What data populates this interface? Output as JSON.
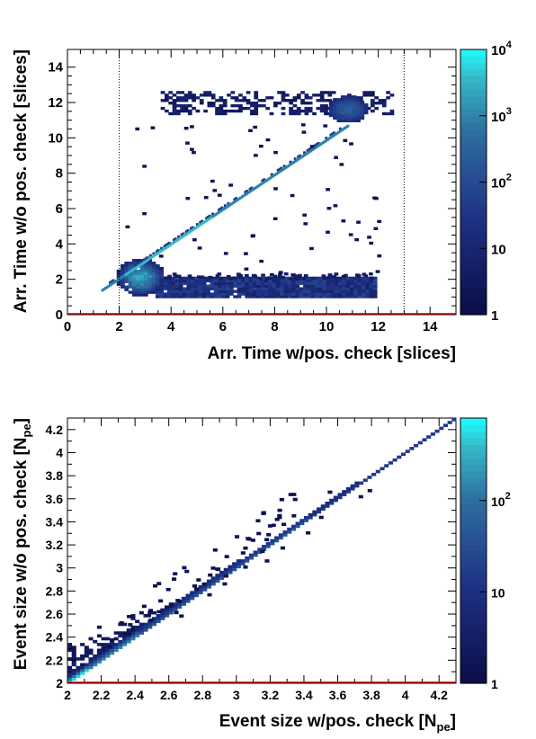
{
  "palette": {
    "low": "#0b0f4a",
    "mid": "#1f2f83",
    "midhigh": "#2d6fa1",
    "high": "#35b8c6",
    "top": "#22f5f7",
    "frame": "#000000",
    "cutline": "#000000",
    "redline": "#c00000"
  },
  "chart_data": [
    {
      "type": "heatmap",
      "xlabel": "Arr. Time w/pos. check [slices]",
      "ylabel": "Arr. Time w/o pos. check [slices]",
      "xlim": [
        0,
        15
      ],
      "ylim": [
        0,
        15
      ],
      "xticks": [
        "0",
        "2",
        "4",
        "6",
        "8",
        "10",
        "12",
        "14"
      ],
      "yticks": [
        "0",
        "2",
        "4",
        "6",
        "8",
        "10",
        "12",
        "14"
      ],
      "color_scale": "log",
      "zlim": [
        1,
        10000
      ],
      "color_ticks": [
        {
          "value": 1,
          "label": "1"
        },
        {
          "value": 10,
          "label": "10"
        },
        {
          "value": 100,
          "label": "10",
          "exp": "2"
        },
        {
          "value": 1000,
          "label": "10",
          "exp": "3"
        },
        {
          "value": 10000,
          "label": "10",
          "exp": "4"
        }
      ],
      "cut_lines_x": [
        2,
        13
      ],
      "regions": [
        {
          "kind": "band",
          "x": [
            2,
            11.9
          ],
          "y": [
            0.9,
            2.1
          ],
          "intensity": 0.35
        },
        {
          "kind": "band",
          "x": [
            3.5,
            12.5
          ],
          "y": [
            11.2,
            12.6
          ],
          "intensity": 0.12
        },
        {
          "kind": "blob",
          "center": [
            10.7,
            11.6
          ],
          "radius": [
            0.7,
            0.7
          ],
          "intensity": 0.55
        },
        {
          "kind": "blob",
          "center": [
            2.7,
            2.1
          ],
          "radius": [
            0.8,
            0.8
          ],
          "intensity": 0.75
        },
        {
          "kind": "diagonal",
          "x": [
            1.3,
            10.8
          ],
          "intensity": 0.8
        }
      ]
    },
    {
      "type": "heatmap",
      "xlabel": "Event size w/pos. check [N",
      "xlabel_sub": "pe",
      "xlabel_end": "]",
      "ylabel": "Event size w/o pos. check [N",
      "ylabel_sub": "pe",
      "ylabel_end": "]",
      "xlim": [
        2,
        4.3
      ],
      "ylim": [
        2,
        4.3
      ],
      "xticks": [
        "2",
        "2.2",
        "2.4",
        "2.6",
        "2.8",
        "3",
        "3.2",
        "3.4",
        "3.6",
        "3.8",
        "4",
        "4.2"
      ],
      "yticks": [
        "2",
        "2.2",
        "2.4",
        "2.6",
        "2.8",
        "3",
        "3.2",
        "3.4",
        "3.6",
        "3.8",
        "4",
        "4.2"
      ],
      "color_scale": "log",
      "zlim": [
        1,
        800
      ],
      "color_ticks": [
        {
          "value": 1,
          "label": "1"
        },
        {
          "value": 10,
          "label": "10"
        },
        {
          "value": 100,
          "label": "10",
          "exp": "2"
        }
      ],
      "regions": [
        {
          "kind": "diagonal",
          "x": [
            2,
            4.3
          ],
          "intensity": 0.7
        },
        {
          "kind": "wedge",
          "x": [
            2,
            2.8
          ],
          "intensity": 0.3
        },
        {
          "kind": "scatter",
          "x": [
            2.2,
            3.9
          ],
          "intensity": 0.05
        }
      ]
    }
  ]
}
